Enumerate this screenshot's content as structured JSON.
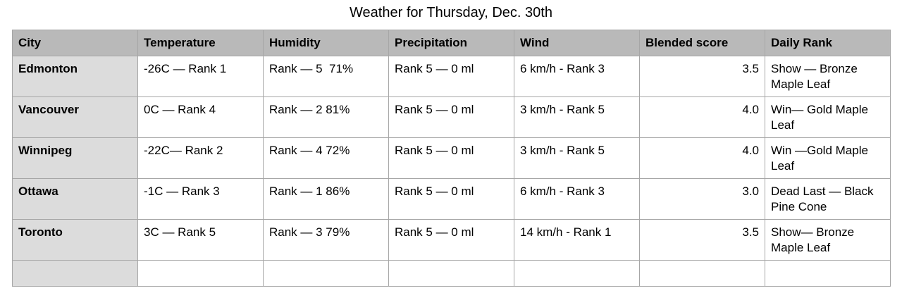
{
  "title": "Weather for Thursday, Dec. 30th",
  "table": {
    "columns": [
      "City",
      "Temperature",
      "Humidity",
      "Precipitation",
      "Wind",
      "Blended score",
      "Daily Rank"
    ],
    "rows": [
      [
        "Edmonton",
        "-26C — Rank 1",
        "Rank — 5  71%",
        "Rank 5 — 0 ml",
        "6 km/h - Rank 3",
        "3.5",
        "Show — Bronze Maple Leaf"
      ],
      [
        "Vancouver",
        "0C — Rank 4",
        "Rank — 2 81%",
        "Rank 5 — 0 ml",
        "3 km/h - Rank 5",
        "4.0",
        "Win— Gold Maple Leaf"
      ],
      [
        "Winnipeg",
        "-22C— Rank 2",
        "Rank — 4 72%",
        "Rank 5 — 0 ml",
        "3 km/h - Rank 5",
        "4.0",
        "Win —Gold Maple Leaf"
      ],
      [
        "Ottawa",
        "-1C — Rank 3",
        "Rank — 1 86%",
        "Rank 5 — 0 ml",
        "6 km/h - Rank 3",
        "3.0",
        "Dead Last — Black Pine Cone"
      ],
      [
        "Toronto",
        "3C — Rank 5",
        "Rank — 3 79%",
        "Rank 5 — 0 ml",
        "14 km/h - Rank 1",
        "3.5",
        "Show— Bronze Maple Leaf"
      ]
    ]
  }
}
